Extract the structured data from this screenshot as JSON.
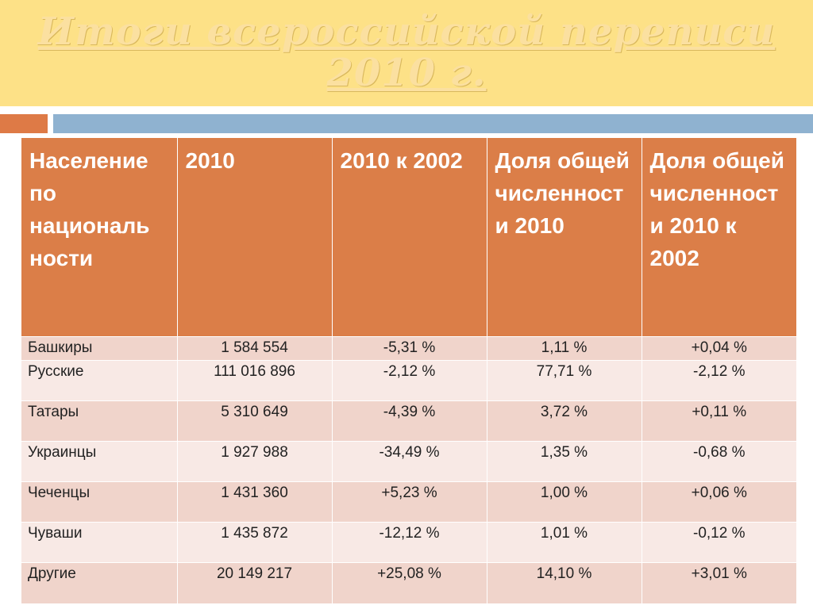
{
  "slide": {
    "title_line1": "Итоги всероссийской переписи",
    "title_line2": "2010 г."
  },
  "table": {
    "headers": [
      "Население по националь ности",
      "2010",
      "2010 к 2002",
      "Доля общей численност и 2010",
      "Доля общей численност и 2010 к 2002"
    ],
    "rows": [
      [
        "Башкиры",
        "1 584 554",
        "-5,31 %",
        "1,11 %",
        "+0,04 %"
      ],
      [
        "Русские",
        "111 016 896",
        "-2,12 %",
        "77,71 %",
        "-2,12 %"
      ],
      [
        "Татары",
        "5 310 649",
        "-4,39 %",
        "3,72 %",
        "+0,11 %"
      ],
      [
        "Украинцы",
        "1 927 988",
        "-34,49 %",
        "1,35 %",
        "-0,68 %"
      ],
      [
        "Чеченцы",
        "1 431 360",
        "+5,23 %",
        "1,00 %",
        "+0,06 %"
      ],
      [
        "Чуваши",
        "1 435 872",
        "-12,12 %",
        "1,01 %",
        "-0,12 %"
      ],
      [
        "Другие",
        "20 149 217",
        "+25,08 %",
        "14,10 %",
        "+3,01 %"
      ]
    ]
  }
}
